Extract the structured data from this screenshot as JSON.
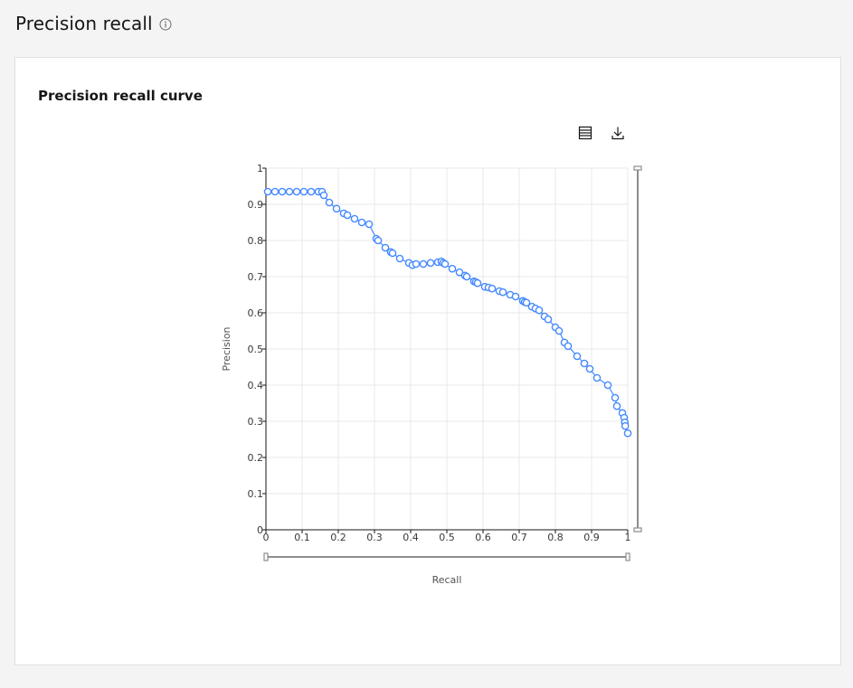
{
  "page": {
    "title": "Precision recall",
    "info_icon": "information-icon"
  },
  "card": {
    "title": "Precision recall curve"
  },
  "toolbar": {
    "table_icon": "table-view-icon",
    "download_icon": "download-icon"
  },
  "colors": {
    "series": "#4589ff",
    "grid": "#e8e8e8",
    "axis": "#161616",
    "slider": "#8d8d8d"
  },
  "chart_data": {
    "type": "scatter",
    "xlabel": "Recall",
    "ylabel": "Precision",
    "xlim": [
      0,
      1
    ],
    "ylim": [
      0,
      1
    ],
    "x_ticks": [
      "0",
      "0.1",
      "0.2",
      "0.3",
      "0.4",
      "0.5",
      "0.6",
      "0.7",
      "0.8",
      "0.9",
      "1"
    ],
    "y_ticks": [
      "0",
      "0.1",
      "0.2",
      "0.3",
      "0.4",
      "0.5",
      "0.6",
      "0.7",
      "0.8",
      "0.9",
      "1"
    ],
    "grid": true,
    "connected": true,
    "series": [
      {
        "points": [
          [
            0.005,
            0.935
          ],
          [
            0.025,
            0.935
          ],
          [
            0.045,
            0.935
          ],
          [
            0.065,
            0.935
          ],
          [
            0.085,
            0.935
          ],
          [
            0.105,
            0.935
          ],
          [
            0.125,
            0.935
          ],
          [
            0.145,
            0.935
          ],
          [
            0.155,
            0.935
          ],
          [
            0.16,
            0.925
          ],
          [
            0.175,
            0.905
          ],
          [
            0.195,
            0.888
          ],
          [
            0.215,
            0.875
          ],
          [
            0.225,
            0.87
          ],
          [
            0.245,
            0.86
          ],
          [
            0.265,
            0.85
          ],
          [
            0.285,
            0.845
          ],
          [
            0.305,
            0.805
          ],
          [
            0.31,
            0.8
          ],
          [
            0.33,
            0.78
          ],
          [
            0.345,
            0.768
          ],
          [
            0.35,
            0.765
          ],
          [
            0.37,
            0.75
          ],
          [
            0.395,
            0.738
          ],
          [
            0.405,
            0.732
          ],
          [
            0.415,
            0.735
          ],
          [
            0.435,
            0.735
          ],
          [
            0.455,
            0.738
          ],
          [
            0.475,
            0.74
          ],
          [
            0.485,
            0.742
          ],
          [
            0.49,
            0.738
          ],
          [
            0.495,
            0.735
          ],
          [
            0.515,
            0.722
          ],
          [
            0.535,
            0.712
          ],
          [
            0.55,
            0.703
          ],
          [
            0.555,
            0.7
          ],
          [
            0.575,
            0.687
          ],
          [
            0.58,
            0.685
          ],
          [
            0.585,
            0.682
          ],
          [
            0.605,
            0.672
          ],
          [
            0.615,
            0.67
          ],
          [
            0.625,
            0.667
          ],
          [
            0.645,
            0.66
          ],
          [
            0.655,
            0.657
          ],
          [
            0.675,
            0.65
          ],
          [
            0.69,
            0.645
          ],
          [
            0.71,
            0.633
          ],
          [
            0.715,
            0.63
          ],
          [
            0.72,
            0.628
          ],
          [
            0.735,
            0.617
          ],
          [
            0.745,
            0.612
          ],
          [
            0.755,
            0.607
          ],
          [
            0.77,
            0.59
          ],
          [
            0.78,
            0.582
          ],
          [
            0.8,
            0.56
          ],
          [
            0.81,
            0.55
          ],
          [
            0.825,
            0.518
          ],
          [
            0.835,
            0.508
          ],
          [
            0.86,
            0.48
          ],
          [
            0.88,
            0.46
          ],
          [
            0.895,
            0.445
          ],
          [
            0.915,
            0.42
          ],
          [
            0.945,
            0.4
          ],
          [
            0.965,
            0.365
          ],
          [
            0.97,
            0.342
          ],
          [
            0.985,
            0.323
          ],
          [
            0.99,
            0.31
          ],
          [
            0.992,
            0.297
          ],
          [
            0.993,
            0.287
          ],
          [
            1.0,
            0.267
          ]
        ]
      }
    ]
  }
}
